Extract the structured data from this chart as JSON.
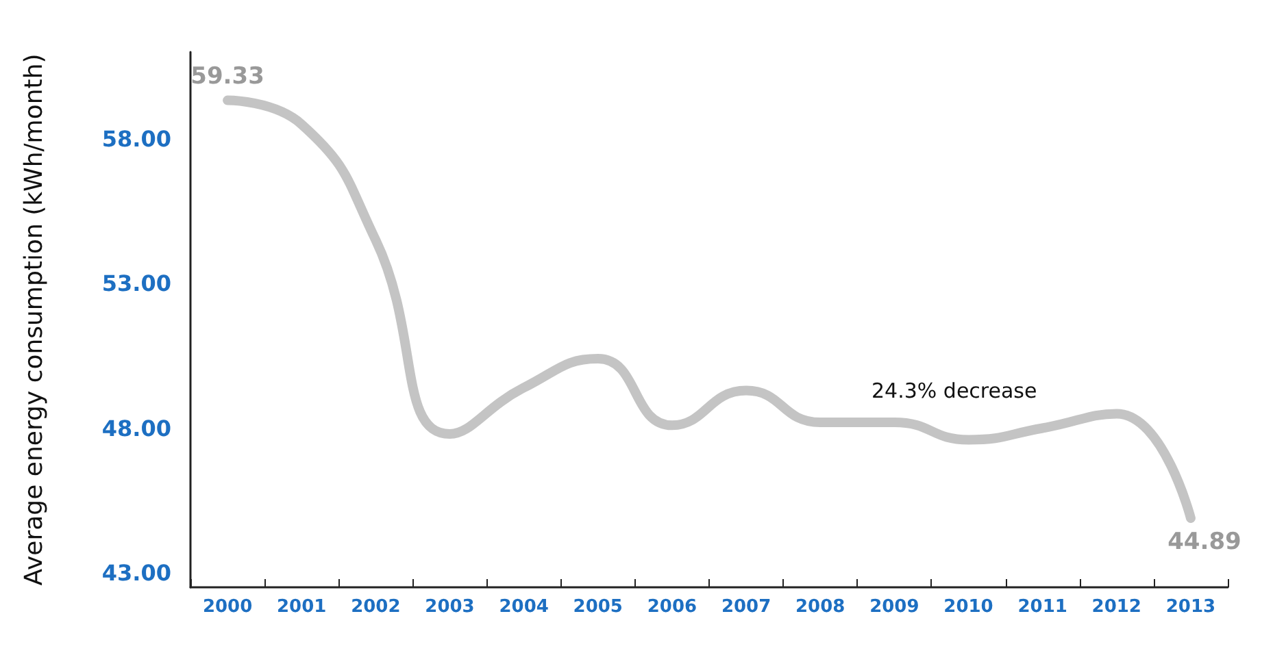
{
  "chart_data": {
    "type": "line",
    "ylabel": "Average energy consumption (kWh/month)",
    "categories": [
      "2000",
      "2001",
      "2002",
      "2003",
      "2004",
      "2005",
      "2006",
      "2007",
      "2008",
      "2009",
      "2010",
      "2011",
      "2012",
      "2013"
    ],
    "series": [
      {
        "color": "#c4c4c4",
        "values": [
          59.33,
          58.5,
          54.5,
          47.8,
          49.4,
          50.4,
          48.1,
          49.3,
          48.2,
          48.2,
          47.6,
          48.0,
          48.5,
          44.89
        ],
        "value_labels": [
          "59.33",
          null,
          null,
          null,
          null,
          null,
          null,
          null,
          null,
          null,
          null,
          null,
          null,
          "44.89"
        ]
      }
    ],
    "ylim": [
      42.5,
      61
    ],
    "yticks": [
      {
        "value": 43,
        "label": "43.00"
      },
      {
        "value": 48,
        "label": "48.00"
      },
      {
        "value": 53,
        "label": "53.00"
      },
      {
        "value": 58,
        "label": "58.00"
      }
    ],
    "annotations": [
      "24.3% decrease"
    ],
    "marker": "none"
  }
}
